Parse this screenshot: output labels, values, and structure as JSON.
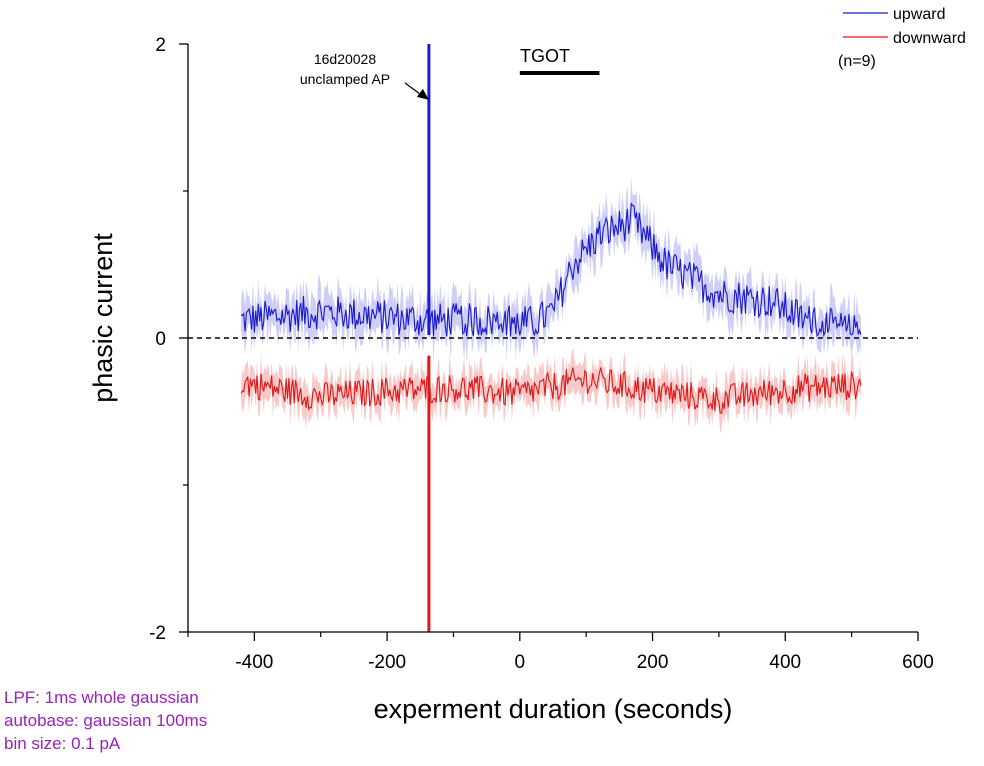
{
  "chart_data": {
    "type": "line",
    "xlabel": "experment duration (seconds)",
    "ylabel": "phasic current",
    "xlim": [
      -500,
      600
    ],
    "ylim": [
      -2,
      2
    ],
    "xticks": [
      "-400",
      "-200",
      "0",
      "200",
      "400",
      "600"
    ],
    "yticks": [
      "-2",
      "0",
      "2"
    ],
    "x_start": -420,
    "x_end": 515,
    "series": [
      {
        "name": "upward",
        "color": "#1a1acc",
        "band_color": "#c5c5f5",
        "keyframes": [
          [
            -420,
            0.12
          ],
          [
            -300,
            0.18
          ],
          [
            -200,
            0.14
          ],
          [
            -140,
            0.12
          ],
          [
            -60,
            0.12
          ],
          [
            20,
            0.1
          ],
          [
            50,
            0.18
          ],
          [
            80,
            0.5
          ],
          [
            120,
            0.7
          ],
          [
            170,
            0.8
          ],
          [
            220,
            0.5
          ],
          [
            300,
            0.3
          ],
          [
            380,
            0.25
          ],
          [
            430,
            0.12
          ],
          [
            470,
            0.08
          ],
          [
            515,
            0.03
          ]
        ],
        "noise": 0.12
      },
      {
        "name": "downward",
        "color": "#e01818",
        "band_color": "#f7c0c0",
        "keyframes": [
          [
            -420,
            -0.3
          ],
          [
            -300,
            -0.4
          ],
          [
            -200,
            -0.36
          ],
          [
            -100,
            -0.34
          ],
          [
            0,
            -0.38
          ],
          [
            100,
            -0.28
          ],
          [
            200,
            -0.36
          ],
          [
            300,
            -0.42
          ],
          [
            420,
            -0.34
          ],
          [
            515,
            -0.32
          ]
        ],
        "noise": 0.1
      }
    ],
    "spike": {
      "x": -137,
      "upward": 2.0,
      "downward": -2.0
    },
    "zero_line": "dashed",
    "event_bar": {
      "label": "TGOT",
      "x_start": 0,
      "x_end": 120
    },
    "annotation": {
      "lines": [
        "16d20028",
        "unclamped AP"
      ],
      "x": -137,
      "y": 1.62
    },
    "legend_position": "top-right",
    "legend_note": "(n=9)",
    "notes": [
      "LPF: 1ms whole gaussian",
      "autobase: gaussian 100ms",
      "bin size: 0.1 pA"
    ]
  }
}
